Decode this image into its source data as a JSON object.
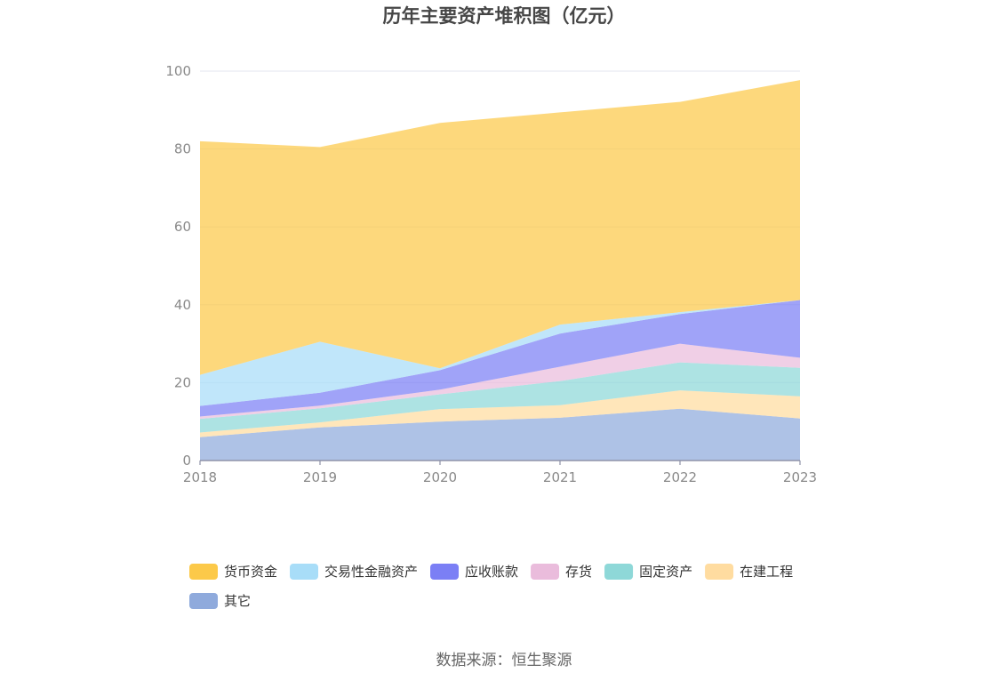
{
  "chart_data": {
    "type": "area",
    "stacked": true,
    "title": "历年主要资产堆积图（亿元）",
    "x": [
      "2018",
      "2019",
      "2020",
      "2021",
      "2022",
      "2023"
    ],
    "ylim": [
      0,
      100
    ],
    "yticks": [
      "0",
      "20",
      "40",
      "60",
      "80",
      "100"
    ],
    "grid": true,
    "legend_position": "bottom",
    "series": [
      {
        "name": "其它",
        "color": "#8faadc",
        "values": [
          6.0,
          8.5,
          10.0,
          11.0,
          13.3,
          10.8
        ]
      },
      {
        "name": "在建工程",
        "color": "#ffdca0",
        "values": [
          1.2,
          1.3,
          3.2,
          3.2,
          4.7,
          5.7
        ]
      },
      {
        "name": "固定资产",
        "color": "#8ed8d8",
        "values": [
          3.5,
          3.6,
          3.8,
          6.2,
          7.2,
          7.3
        ]
      },
      {
        "name": "存货",
        "color": "#eabcdc",
        "values": [
          0.6,
          0.7,
          1.2,
          3.7,
          4.8,
          2.6
        ]
      },
      {
        "name": "应收账款",
        "color": "#7b7ff5",
        "values": [
          2.7,
          3.3,
          5.0,
          8.5,
          7.6,
          14.8
        ]
      },
      {
        "name": "交易性金融资产",
        "color": "#a8ddf8",
        "values": [
          8.0,
          13.1,
          0.5,
          2.3,
          0.5,
          0
        ]
      },
      {
        "name": "货币资金",
        "color": "#fcc949",
        "values": [
          60.0,
          50.0,
          63.0,
          54.5,
          54.0,
          56.5
        ]
      }
    ],
    "legend_order": [
      "货币资金",
      "交易性金融资产",
      "应收账款",
      "存货",
      "固定资产",
      "在建工程",
      "其它"
    ]
  },
  "source": "数据来源：恒生聚源"
}
